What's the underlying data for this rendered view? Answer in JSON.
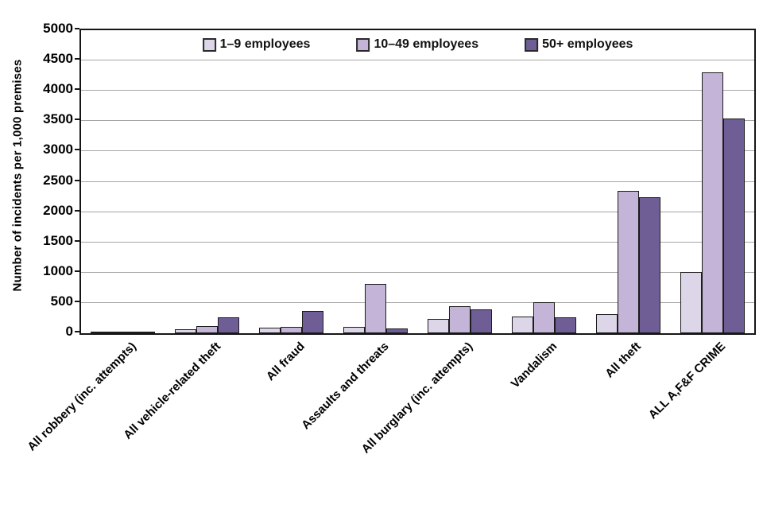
{
  "chart_data": {
    "type": "bar",
    "title": "",
    "ylabel": "Number of incidents per 1,000 premises",
    "xlabel": "",
    "ylim": [
      0,
      5000
    ],
    "ytick_step": 500,
    "yticks": [
      "0",
      "500",
      "1000",
      "1500",
      "2000",
      "2500",
      "3000",
      "3500",
      "4000",
      "4500",
      "5000"
    ],
    "grid": "horizontal",
    "legend_position": "top-center-inside",
    "categories": [
      "All robbery (inc. attempts)",
      "All vehicle-related theft",
      "All fraud",
      "Assaults and threats",
      "All burglary (inc. attempts)",
      "Vandalism",
      "All theft",
      "ALL A,F&F CRIME"
    ],
    "series": [
      {
        "name": "1–9 employees",
        "color": "#ddd6e8",
        "values": [
          10,
          60,
          90,
          110,
          230,
          270,
          310,
          1010
        ]
      },
      {
        "name": "10–49 employees",
        "color": "#c4b5d8",
        "values": [
          15,
          120,
          110,
          810,
          450,
          510,
          2350,
          4300
        ]
      },
      {
        "name": "50+ employees",
        "color": "#6f5e95",
        "values": [
          25,
          260,
          370,
          75,
          390,
          260,
          2250,
          3550
        ]
      }
    ],
    "bar_border_color": "#1c1c1c",
    "gridline_color": "#a6a6a6",
    "frame_color": "#161616"
  }
}
